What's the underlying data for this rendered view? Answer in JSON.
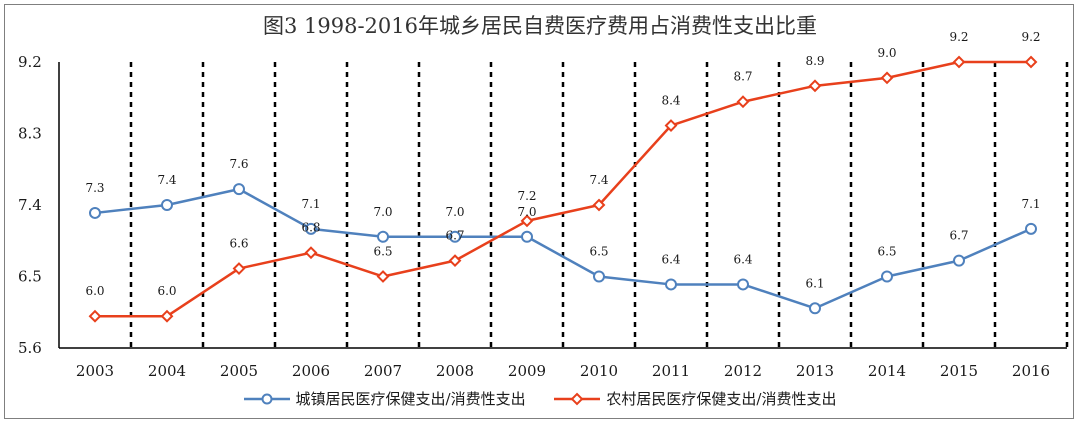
{
  "chart_data": {
    "type": "line",
    "title": "图3  1998-2016年城乡居民自费医疗费用占消费性支出比重",
    "categories": [
      "2003",
      "2004",
      "2005",
      "2006",
      "2007",
      "2008",
      "2009",
      "2010",
      "2011",
      "2012",
      "2013",
      "2014",
      "2015",
      "2016"
    ],
    "ylim": [
      5.6,
      9.2
    ],
    "yticks": [
      "5.6",
      "6.5",
      "7.4",
      "8.3",
      "9.2"
    ],
    "grid": "dashed vertical lines between years",
    "legend_position": "bottom",
    "series": [
      {
        "name": "城镇居民医疗保健支出/消费性支出",
        "color": "#4f81bd",
        "marker": "circle",
        "values": [
          7.3,
          7.4,
          7.6,
          7.1,
          7.0,
          7.0,
          7.0,
          6.5,
          6.4,
          6.4,
          6.1,
          6.5,
          6.7,
          7.1
        ],
        "labels": [
          "7.3",
          "7.4",
          "7.6",
          "7.1",
          "7.0",
          "7.0",
          "7.0",
          "6.5",
          "6.4",
          "6.4",
          "6.1",
          "6.5",
          "6.7",
          "7.1"
        ]
      },
      {
        "name": "农村居民医疗保健支出/消费性支出",
        "color": "#e8401c",
        "marker": "diamond",
        "values": [
          6.0,
          6.0,
          6.6,
          6.8,
          6.5,
          6.7,
          7.2,
          7.4,
          8.4,
          8.7,
          8.9,
          9.0,
          9.2,
          9.2
        ],
        "labels": [
          "6.0",
          "6.0",
          "6.6",
          "6.8",
          "6.5",
          "6.7",
          "7.2",
          "7.4",
          "8.4",
          "8.7",
          "8.9",
          "9.0",
          "9.2",
          "9.2"
        ]
      }
    ]
  }
}
